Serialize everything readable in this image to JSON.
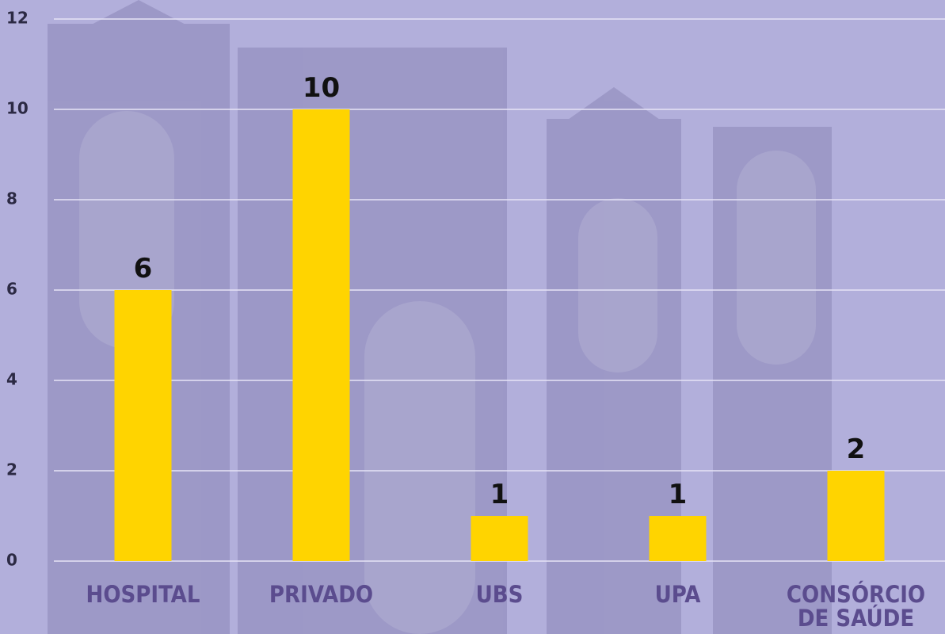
{
  "chart_data": {
    "type": "bar",
    "categories": [
      "HOSPITAL",
      "PRIVADO",
      "UBS",
      "UPA",
      "CONSÓRCIO DE SAÚDE"
    ],
    "values": [
      6,
      10,
      1,
      1,
      2
    ],
    "color": "#ffd400",
    "ylim": [
      0,
      12
    ],
    "yticks": [
      0,
      2,
      4,
      6,
      8,
      10,
      12
    ],
    "grid": true
  }
}
